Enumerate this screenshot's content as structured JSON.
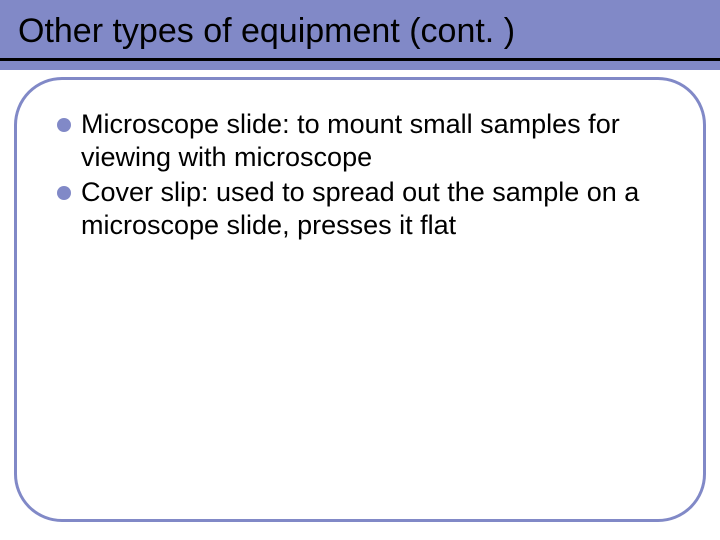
{
  "slide": {
    "title": "Other types of equipment (cont. )",
    "title_fontsize": 34,
    "title_color": "#000000",
    "band_color": "#8189c7",
    "underline_color": "#000000",
    "box_border_color": "#8189c7",
    "box_border_radius": 48,
    "background_color": "#ffffff",
    "bullet_color": "#8189c7",
    "bullet_fontsize": 27,
    "bullet_text_color": "#000000",
    "bullets": [
      "Microscope slide:  to mount small samples for viewing with microscope",
      "Cover slip: used to spread out the sample on a microscope slide, presses it flat"
    ]
  }
}
